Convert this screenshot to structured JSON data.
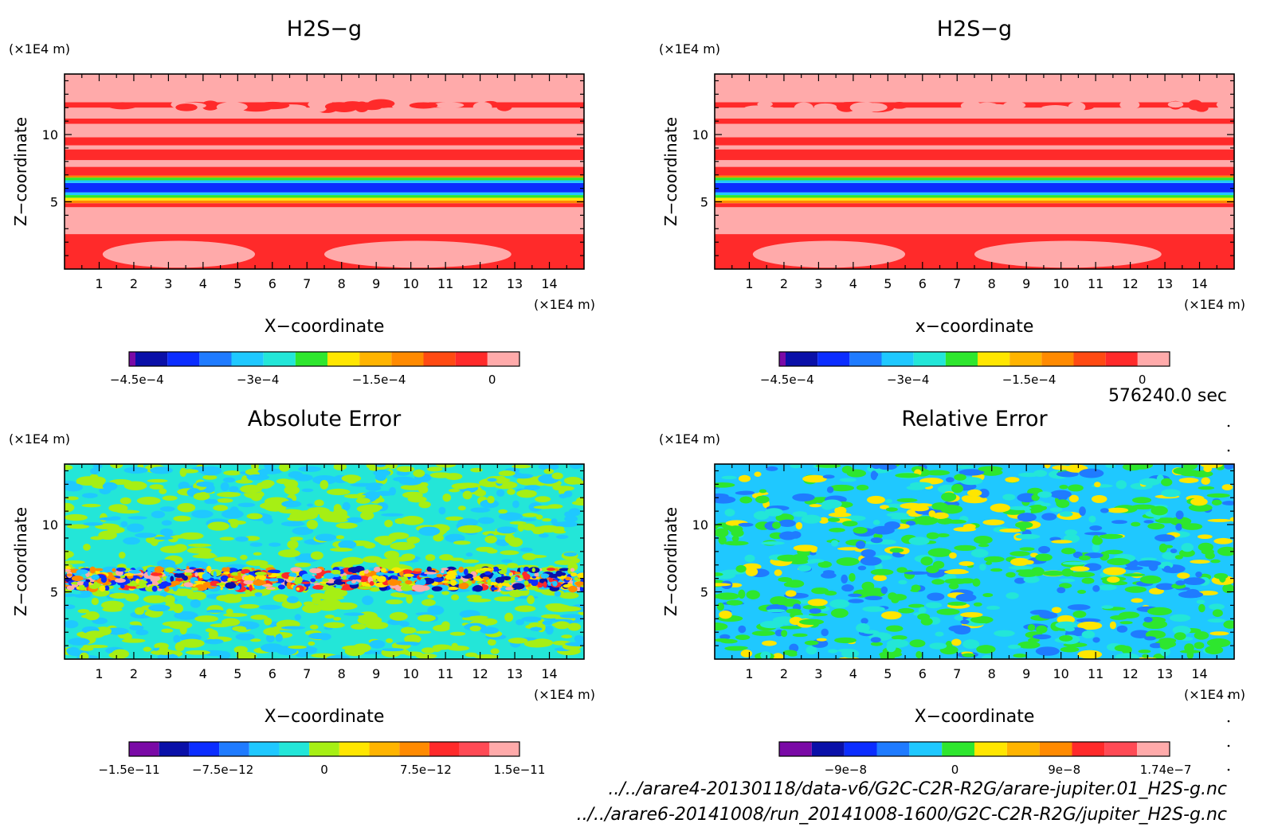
{
  "colors": {
    "purple": "#7a0aa6",
    "navy": "#0a10a8",
    "blue": "#0b2dff",
    "mid_blue": "#1f7bff",
    "light_blue": "#1fc8ff",
    "cyan": "#23e6d8",
    "green": "#2ee62e",
    "yellow_green": "#a6ef14",
    "yellow": "#ffe600",
    "light_orange": "#ffb400",
    "orange": "#ff8a00",
    "red_orange": "#ff4a12",
    "red": "#ff2a2a",
    "pink_red": "#ff4a55",
    "pink": "#ffaaaa"
  },
  "footer": {
    "time": "576240.0 sec",
    "file1": "../../arare4-20130118/data-v6/G2C-C2R-R2G/arare-jupiter.01_H2S-g.nc",
    "file2": "../../arare6-20141008/run_20141008-1600/G2C-C2R-R2G/jupiter_H2S-g.nc"
  },
  "chart_data": [
    {
      "type": "heatmap",
      "title": "H2S−g",
      "xlabel": "X−coordinate",
      "ylabel": "Z−coordinate",
      "x_unit": "(×1E4 m)",
      "y_unit": "(×1E4 m)",
      "xlim": [
        0,
        15
      ],
      "ylim": [
        0,
        14.5
      ],
      "x_ticks": [
        "1",
        "2",
        "3",
        "4",
        "5",
        "6",
        "7",
        "8",
        "9",
        "10",
        "11",
        "12",
        "13",
        "14"
      ],
      "y_ticks": [
        "5",
        "10"
      ],
      "colorbar": {
        "colors": [
          "purple",
          "navy",
          "blue",
          "mid_blue",
          "light_blue",
          "cyan",
          "green",
          "yellow",
          "light_orange",
          "orange",
          "red_orange",
          "red",
          "pink"
        ],
        "labels": [
          "−4.5e−4",
          "−3e−4",
          "−1.5e−4",
          "0"
        ],
        "label_positions": [
          0.02,
          0.33,
          0.64,
          0.93
        ]
      },
      "layers": [
        {
          "z0": 0,
          "z1": 2.6,
          "color": "red"
        },
        {
          "z0": 2.6,
          "z1": 4.6,
          "color": "pink"
        },
        {
          "z0": 4.6,
          "z1": 4.9,
          "color": "red"
        },
        {
          "z0": 4.9,
          "z1": 5.1,
          "color": "orange"
        },
        {
          "z0": 5.1,
          "z1": 5.3,
          "color": "yellow"
        },
        {
          "z0": 5.3,
          "z1": 5.5,
          "color": "green"
        },
        {
          "z0": 5.5,
          "z1": 5.7,
          "color": "light_blue"
        },
        {
          "z0": 5.7,
          "z1": 6.4,
          "color": "blue"
        },
        {
          "z0": 6.4,
          "z1": 6.6,
          "color": "light_blue"
        },
        {
          "z0": 6.6,
          "z1": 6.8,
          "color": "green"
        },
        {
          "z0": 6.8,
          "z1": 6.95,
          "color": "orange"
        },
        {
          "z0": 6.95,
          "z1": 7.6,
          "color": "red"
        },
        {
          "z0": 7.6,
          "z1": 8.1,
          "color": "pink"
        },
        {
          "z0": 8.1,
          "z1": 8.9,
          "color": "red"
        },
        {
          "z0": 8.9,
          "z1": 9.2,
          "color": "pink"
        },
        {
          "z0": 9.2,
          "z1": 9.8,
          "color": "red"
        },
        {
          "z0": 9.8,
          "z1": 10.8,
          "color": "pink"
        },
        {
          "z0": 10.8,
          "z1": 11.2,
          "color": "red"
        },
        {
          "z0": 11.2,
          "z1": 12.0,
          "color": "pink"
        },
        {
          "z0": 12.0,
          "z1": 12.4,
          "color": "red"
        },
        {
          "z0": 12.4,
          "z1": 14.5,
          "color": "pink"
        }
      ],
      "blobs": [
        {
          "x": 3.3,
          "z": 1.1,
          "rx": 2.2,
          "rz": 1.0,
          "color": "pink"
        },
        {
          "x": 10.2,
          "z": 1.1,
          "rx": 2.7,
          "rz": 1.0,
          "color": "pink"
        }
      ]
    },
    {
      "type": "heatmap",
      "title": "H2S−g",
      "xlabel": "x−coordinate",
      "ylabel": "Z−coordinate",
      "x_unit": "(×1E4 m)",
      "y_unit": "(×1E4 m)",
      "xlim": [
        0,
        15
      ],
      "ylim": [
        0,
        14.5
      ],
      "x_ticks": [
        "1",
        "2",
        "3",
        "4",
        "5",
        "6",
        "7",
        "8",
        "9",
        "10",
        "11",
        "12",
        "13",
        "14"
      ],
      "y_ticks": [
        "5",
        "10"
      ],
      "colorbar": {
        "colors": [
          "purple",
          "navy",
          "blue",
          "mid_blue",
          "light_blue",
          "cyan",
          "green",
          "yellow",
          "light_orange",
          "orange",
          "red_orange",
          "red",
          "pink"
        ],
        "labels": [
          "−4.5e−4",
          "−3e−4",
          "−1.5e−4",
          "0"
        ],
        "label_positions": [
          0.02,
          0.33,
          0.64,
          0.93
        ]
      },
      "layers": [
        {
          "z0": 0,
          "z1": 2.6,
          "color": "red"
        },
        {
          "z0": 2.6,
          "z1": 4.6,
          "color": "pink"
        },
        {
          "z0": 4.6,
          "z1": 4.9,
          "color": "red"
        },
        {
          "z0": 4.9,
          "z1": 5.1,
          "color": "orange"
        },
        {
          "z0": 5.1,
          "z1": 5.3,
          "color": "yellow"
        },
        {
          "z0": 5.3,
          "z1": 5.5,
          "color": "green"
        },
        {
          "z0": 5.5,
          "z1": 5.7,
          "color": "light_blue"
        },
        {
          "z0": 5.7,
          "z1": 6.4,
          "color": "blue"
        },
        {
          "z0": 6.4,
          "z1": 6.6,
          "color": "light_blue"
        },
        {
          "z0": 6.6,
          "z1": 6.8,
          "color": "green"
        },
        {
          "z0": 6.8,
          "z1": 6.95,
          "color": "orange"
        },
        {
          "z0": 6.95,
          "z1": 7.6,
          "color": "red"
        },
        {
          "z0": 7.6,
          "z1": 8.1,
          "color": "pink"
        },
        {
          "z0": 8.1,
          "z1": 8.9,
          "color": "red"
        },
        {
          "z0": 8.9,
          "z1": 9.2,
          "color": "pink"
        },
        {
          "z0": 9.2,
          "z1": 9.8,
          "color": "red"
        },
        {
          "z0": 9.8,
          "z1": 10.8,
          "color": "pink"
        },
        {
          "z0": 10.8,
          "z1": 11.2,
          "color": "red"
        },
        {
          "z0": 11.2,
          "z1": 12.0,
          "color": "pink"
        },
        {
          "z0": 12.0,
          "z1": 12.4,
          "color": "red"
        },
        {
          "z0": 12.4,
          "z1": 14.5,
          "color": "pink"
        }
      ],
      "blobs": [
        {
          "x": 3.3,
          "z": 1.1,
          "rx": 2.2,
          "rz": 1.0,
          "color": "pink"
        },
        {
          "x": 10.2,
          "z": 1.1,
          "rx": 2.7,
          "rz": 1.0,
          "color": "pink"
        }
      ]
    },
    {
      "type": "heatmap",
      "title": "Absolute Error",
      "xlabel": "X−coordinate",
      "ylabel": "Z−coordinate",
      "x_unit": "(×1E4 m)",
      "y_unit": "(×1E4 m)",
      "xlim": [
        0,
        15
      ],
      "ylim": [
        0,
        14.5
      ],
      "x_ticks": [
        "1",
        "2",
        "3",
        "4",
        "5",
        "6",
        "7",
        "8",
        "9",
        "10",
        "11",
        "12",
        "13",
        "14"
      ],
      "y_ticks": [
        "5",
        "10"
      ],
      "colorbar": {
        "colors": [
          "purple",
          "navy",
          "blue",
          "mid_blue",
          "light_blue",
          "cyan",
          "yellow_green",
          "yellow",
          "light_orange",
          "orange",
          "red",
          "pink_red",
          "pink"
        ],
        "labels": [
          "−1.5e−11",
          "−7.5e−12",
          "0",
          "7.5e−12",
          "1.5e−11"
        ],
        "label_positions": [
          0.0,
          0.24,
          0.5,
          0.76,
          1.0
        ]
      },
      "layers": [
        {
          "z0": 0,
          "z1": 14.5,
          "color": "cyan"
        }
      ],
      "noise": {
        "z0": 0,
        "z1": 14.5,
        "colors": [
          "yellow_green",
          "yellow_green",
          "light_blue"
        ],
        "density": 0.55
      },
      "turbulence": {
        "z0": 5.2,
        "z1": 6.7,
        "colors": [
          "blue",
          "red",
          "navy",
          "orange",
          "yellow",
          "pink",
          "yellow_green",
          "light_blue"
        ]
      }
    },
    {
      "type": "heatmap",
      "title": "Relative Error",
      "xlabel": "X−coordinate",
      "ylabel": "Z−coordinate",
      "x_unit": "(×1E4 m)",
      "y_unit": "(×1E4 m)",
      "xlim": [
        0,
        15
      ],
      "ylim": [
        0,
        14.5
      ],
      "x_ticks": [
        "1",
        "2",
        "3",
        "4",
        "5",
        "6",
        "7",
        "8",
        "9",
        "10",
        "11",
        "12",
        "13",
        "14"
      ],
      "y_ticks": [
        "5",
        "10"
      ],
      "colorbar": {
        "colors": [
          "purple",
          "navy",
          "blue",
          "mid_blue",
          "light_blue",
          "green",
          "yellow",
          "light_orange",
          "orange",
          "red",
          "pink_red",
          "pink"
        ],
        "labels": [
          "−9e−8",
          "0",
          "9e−8",
          "1.74e−7"
        ],
        "label_positions": [
          0.17,
          0.45,
          0.73,
          0.99
        ]
      },
      "layers": [
        {
          "z0": 0,
          "z1": 14.5,
          "color": "light_blue"
        }
      ],
      "noise": {
        "z0": 0,
        "z1": 14.5,
        "colors": [
          "green",
          "green",
          "cyan",
          "mid_blue",
          "yellow"
        ],
        "density": 0.5
      }
    }
  ]
}
